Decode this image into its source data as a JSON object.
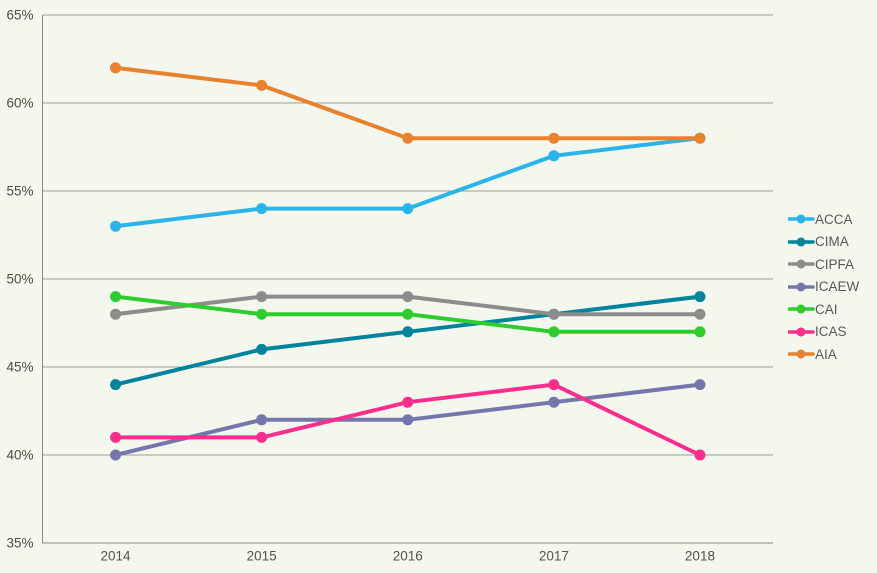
{
  "chart": {
    "background": "#f4f7ed",
    "gridline_color": "#9c9c98",
    "axis_color": "#888884",
    "tick_label_color": "#4c4c44",
    "x_label_color": "#54544e",
    "legend_text_color": "#595959"
  },
  "chart_data": {
    "type": "line",
    "title": "",
    "xlabel": "",
    "ylabel": "",
    "categories": [
      "2014",
      "2015",
      "2016",
      "2017",
      "2018"
    ],
    "series": [
      {
        "name": "ACCA",
        "color": "#2ab4e9",
        "values": [
          53,
          54,
          54,
          57,
          58
        ]
      },
      {
        "name": "CIMA",
        "color": "#00849b",
        "values": [
          44,
          46,
          47,
          48,
          49
        ]
      },
      {
        "name": "CIPFA",
        "color": "#8c8c8c",
        "values": [
          48,
          49,
          49,
          48,
          48
        ]
      },
      {
        "name": "ICAEW",
        "color": "#7576ab",
        "values": [
          40,
          42,
          42,
          43,
          44
        ]
      },
      {
        "name": "CAI",
        "color": "#2ecc2e",
        "values": [
          49,
          48,
          48,
          47,
          47
        ]
      },
      {
        "name": "ICAS",
        "color": "#fb2d8d",
        "values": [
          41,
          41,
          43,
          44,
          40
        ]
      },
      {
        "name": "AIA",
        "color": "#e8822f",
        "values": [
          62,
          61,
          58,
          58,
          58
        ]
      }
    ],
    "ylim": [
      35,
      65
    ],
    "ytick_step": 5,
    "ytick_suffix": "%",
    "grid": true,
    "legend_position": "right"
  }
}
